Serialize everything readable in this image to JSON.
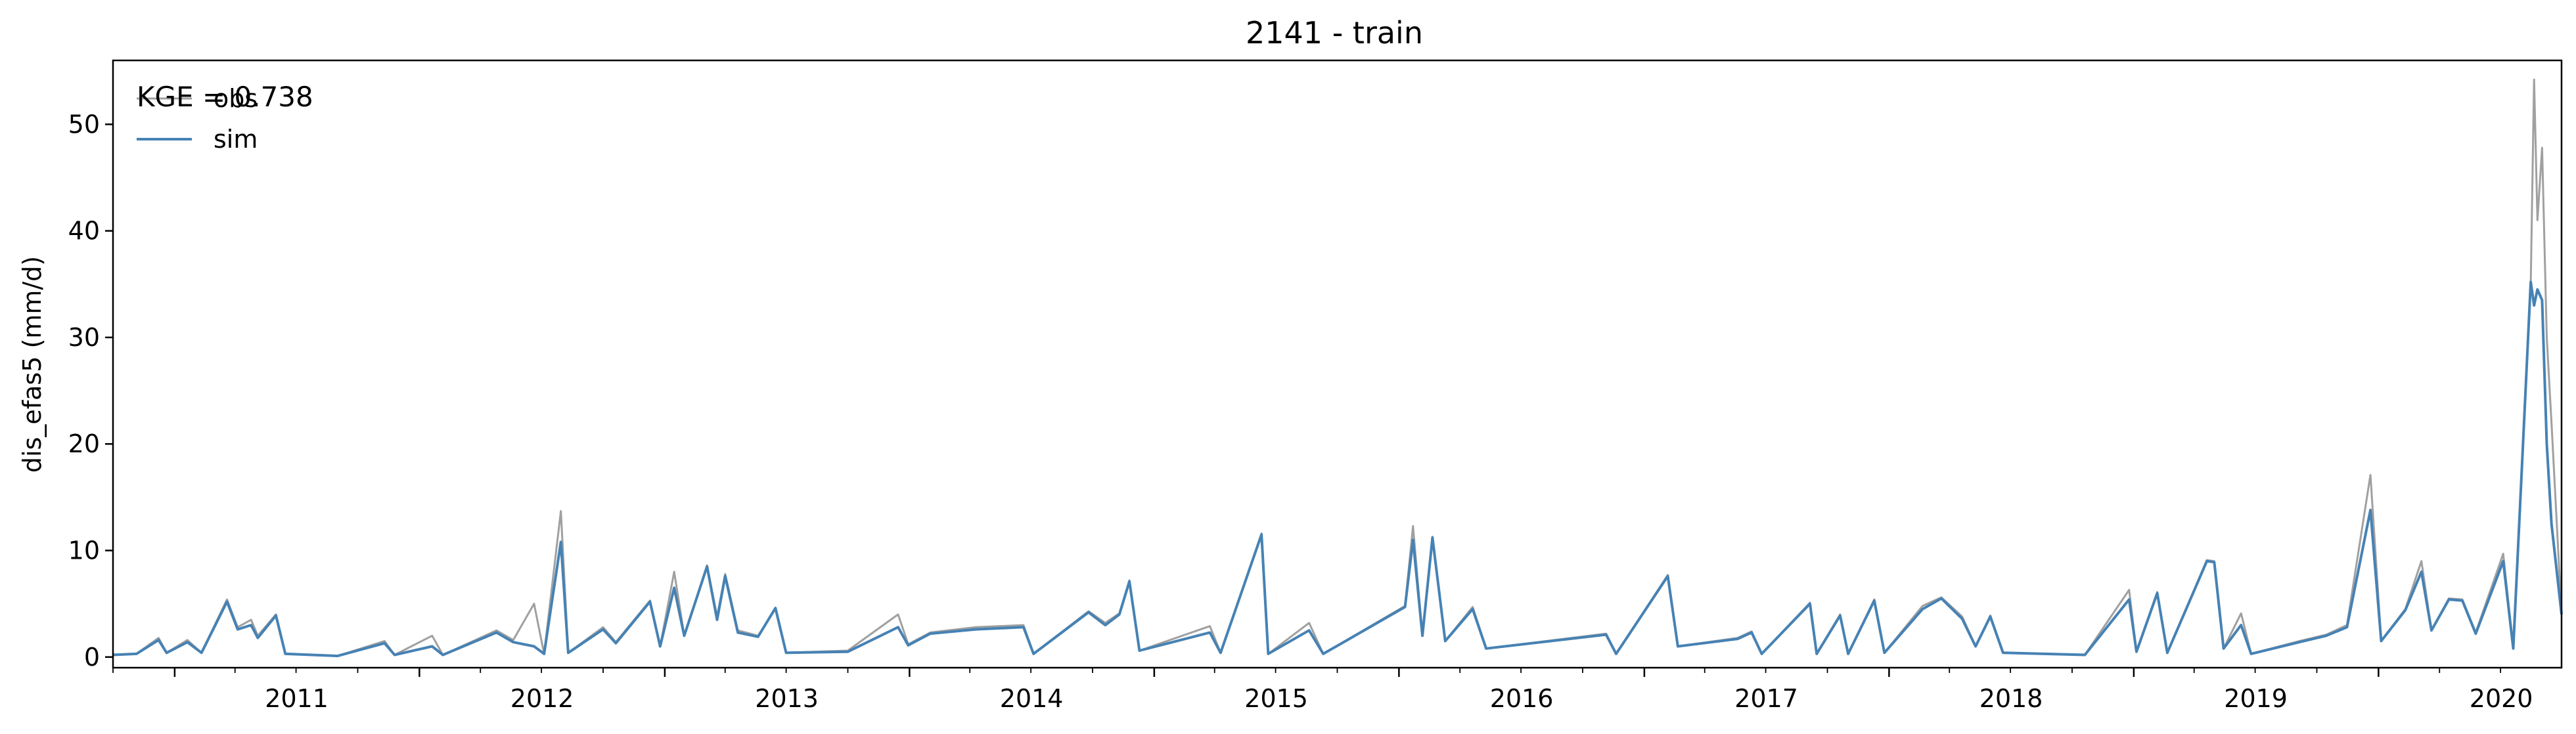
{
  "chart_data": {
    "type": "line",
    "title": "2141 - train",
    "xlabel": "",
    "ylabel": "dis_efas5 (mm/d)",
    "annotation": "KGE = 0.738",
    "legend_position": "top-left",
    "grid": false,
    "xlim": [
      "2010-10-01",
      "2020-09-30"
    ],
    "ylim": [
      -1,
      56
    ],
    "x_ticks": [
      "2011",
      "2012",
      "2013",
      "2014",
      "2015",
      "2016",
      "2017",
      "2018",
      "2019",
      "2020"
    ],
    "y_ticks": [
      0,
      10,
      20,
      30,
      40,
      50
    ],
    "series": [
      {
        "name": "obs",
        "color": "#a0a0a0",
        "points": [
          [
            "2010-10-01",
            0.2
          ],
          [
            "2010-11-05",
            0.3
          ],
          [
            "2010-12-08",
            1.8
          ],
          [
            "2010-12-20",
            0.4
          ],
          [
            "2011-01-20",
            1.6
          ],
          [
            "2011-02-10",
            0.4
          ],
          [
            "2011-03-20",
            5.4
          ],
          [
            "2011-04-05",
            2.8
          ],
          [
            "2011-04-25",
            3.5
          ],
          [
            "2011-05-05",
            2.0
          ],
          [
            "2011-06-01",
            4.0
          ],
          [
            "2011-06-15",
            0.3
          ],
          [
            "2011-09-01",
            0.1
          ],
          [
            "2011-11-10",
            1.5
          ],
          [
            "2011-11-25",
            0.2
          ],
          [
            "2012-01-20",
            2.0
          ],
          [
            "2012-02-05",
            0.2
          ],
          [
            "2012-04-25",
            2.5
          ],
          [
            "2012-05-20",
            1.6
          ],
          [
            "2012-06-20",
            5.0
          ],
          [
            "2012-07-05",
            0.3
          ],
          [
            "2012-07-30",
            13.7
          ],
          [
            "2012-08-10",
            0.4
          ],
          [
            "2012-10-01",
            2.8
          ],
          [
            "2012-10-20",
            1.4
          ],
          [
            "2012-12-10",
            5.3
          ],
          [
            "2012-12-25",
            1.0
          ],
          [
            "2013-01-15",
            8.0
          ],
          [
            "2013-01-30",
            2.0
          ],
          [
            "2013-03-05",
            8.6
          ],
          [
            "2013-03-20",
            3.8
          ],
          [
            "2013-04-01",
            7.8
          ],
          [
            "2013-04-20",
            2.5
          ],
          [
            "2013-05-20",
            2.0
          ],
          [
            "2013-06-15",
            4.5
          ],
          [
            "2013-07-01",
            0.4
          ],
          [
            "2013-10-01",
            0.6
          ],
          [
            "2013-12-15",
            4.0
          ],
          [
            "2013-12-30",
            1.2
          ],
          [
            "2014-02-01",
            2.3
          ],
          [
            "2014-04-10",
            2.8
          ],
          [
            "2014-06-20",
            3.0
          ],
          [
            "2014-07-05",
            0.3
          ],
          [
            "2014-09-25",
            4.3
          ],
          [
            "2014-10-20",
            3.2
          ],
          [
            "2014-11-10",
            4.1
          ],
          [
            "2014-11-25",
            7.2
          ],
          [
            "2014-12-10",
            0.6
          ],
          [
            "2015-03-25",
            2.9
          ],
          [
            "2015-04-10",
            0.4
          ],
          [
            "2015-06-10",
            11.6
          ],
          [
            "2015-06-20",
            0.3
          ],
          [
            "2015-08-20",
            3.2
          ],
          [
            "2015-09-10",
            0.3
          ],
          [
            "2016-01-10",
            4.8
          ],
          [
            "2016-01-22",
            12.3
          ],
          [
            "2016-02-05",
            2.0
          ],
          [
            "2016-02-20",
            11.3
          ],
          [
            "2016-03-10",
            1.5
          ],
          [
            "2016-04-20",
            4.7
          ],
          [
            "2016-05-10",
            0.8
          ],
          [
            "2016-11-05",
            2.2
          ],
          [
            "2016-11-20",
            0.3
          ],
          [
            "2017-02-05",
            7.7
          ],
          [
            "2017-02-20",
            1.0
          ],
          [
            "2017-05-20",
            1.8
          ],
          [
            "2017-06-10",
            2.4
          ],
          [
            "2017-06-25",
            0.3
          ],
          [
            "2017-09-05",
            5.1
          ],
          [
            "2017-09-15",
            0.3
          ],
          [
            "2017-10-20",
            4.0
          ],
          [
            "2017-11-01",
            0.3
          ],
          [
            "2017-12-10",
            5.4
          ],
          [
            "2017-12-25",
            0.4
          ],
          [
            "2018-02-20",
            4.8
          ],
          [
            "2018-03-20",
            5.6
          ],
          [
            "2018-04-20",
            3.8
          ],
          [
            "2018-05-10",
            1.0
          ],
          [
            "2018-06-01",
            3.9
          ],
          [
            "2018-06-20",
            0.4
          ],
          [
            "2018-10-20",
            0.2
          ],
          [
            "2018-12-25",
            6.3
          ],
          [
            "2019-01-05",
            0.5
          ],
          [
            "2019-02-05",
            6.1
          ],
          [
            "2019-02-20",
            0.4
          ],
          [
            "2019-04-20",
            9.1
          ],
          [
            "2019-05-01",
            9.0
          ],
          [
            "2019-05-15",
            0.8
          ],
          [
            "2019-06-10",
            4.1
          ],
          [
            "2019-06-25",
            0.3
          ],
          [
            "2019-09-05",
            1.5
          ],
          [
            "2019-10-15",
            2.1
          ],
          [
            "2019-11-15",
            3.0
          ],
          [
            "2019-12-20",
            17.1
          ],
          [
            "2020-01-05",
            1.5
          ],
          [
            "2020-02-10",
            4.5
          ],
          [
            "2020-03-05",
            9.0
          ],
          [
            "2020-03-20",
            2.5
          ],
          [
            "2020-04-15",
            5.5
          ],
          [
            "2020-05-05",
            5.4
          ],
          [
            "2020-05-25",
            2.3
          ],
          [
            "2020-07-05",
            9.7
          ],
          [
            "2020-07-20",
            0.8
          ],
          [
            "2020-08-15",
            35.0
          ],
          [
            "2020-08-20",
            54.2
          ],
          [
            "2020-08-25",
            41.0
          ],
          [
            "2020-09-01",
            47.8
          ],
          [
            "2020-09-08",
            30.0
          ],
          [
            "2020-09-15",
            22.0
          ],
          [
            "2020-09-30",
            4.0
          ]
        ]
      },
      {
        "name": "sim",
        "color": "#4682b4",
        "points": [
          [
            "2010-10-01",
            0.2
          ],
          [
            "2010-11-05",
            0.3
          ],
          [
            "2010-12-08",
            1.6
          ],
          [
            "2010-12-20",
            0.4
          ],
          [
            "2011-01-20",
            1.4
          ],
          [
            "2011-02-10",
            0.4
          ],
          [
            "2011-03-20",
            5.2
          ],
          [
            "2011-04-05",
            2.6
          ],
          [
            "2011-04-25",
            3.0
          ],
          [
            "2011-05-05",
            1.8
          ],
          [
            "2011-06-01",
            3.9
          ],
          [
            "2011-06-15",
            0.3
          ],
          [
            "2011-09-01",
            0.1
          ],
          [
            "2011-11-10",
            1.3
          ],
          [
            "2011-11-25",
            0.2
          ],
          [
            "2012-01-20",
            1.0
          ],
          [
            "2012-02-05",
            0.2
          ],
          [
            "2012-04-25",
            2.3
          ],
          [
            "2012-05-20",
            1.4
          ],
          [
            "2012-06-20",
            1.0
          ],
          [
            "2012-07-05",
            0.3
          ],
          [
            "2012-07-30",
            10.8
          ],
          [
            "2012-08-10",
            0.4
          ],
          [
            "2012-10-01",
            2.6
          ],
          [
            "2012-10-20",
            1.3
          ],
          [
            "2012-12-10",
            5.2
          ],
          [
            "2012-12-25",
            1.0
          ],
          [
            "2013-01-15",
            6.5
          ],
          [
            "2013-01-30",
            2.0
          ],
          [
            "2013-03-05",
            8.5
          ],
          [
            "2013-03-20",
            3.5
          ],
          [
            "2013-04-01",
            7.6
          ],
          [
            "2013-04-20",
            2.3
          ],
          [
            "2013-05-20",
            1.9
          ],
          [
            "2013-06-15",
            4.6
          ],
          [
            "2013-07-01",
            0.4
          ],
          [
            "2013-10-01",
            0.5
          ],
          [
            "2013-12-15",
            2.8
          ],
          [
            "2013-12-30",
            1.1
          ],
          [
            "2014-02-01",
            2.2
          ],
          [
            "2014-04-10",
            2.6
          ],
          [
            "2014-06-20",
            2.8
          ],
          [
            "2014-07-05",
            0.3
          ],
          [
            "2014-09-25",
            4.2
          ],
          [
            "2014-10-20",
            3.0
          ],
          [
            "2014-11-10",
            4.0
          ],
          [
            "2014-11-25",
            7.1
          ],
          [
            "2014-12-10",
            0.6
          ],
          [
            "2015-03-25",
            2.3
          ],
          [
            "2015-04-10",
            0.4
          ],
          [
            "2015-06-10",
            11.5
          ],
          [
            "2015-06-20",
            0.3
          ],
          [
            "2015-08-20",
            2.5
          ],
          [
            "2015-09-10",
            0.3
          ],
          [
            "2016-01-10",
            4.7
          ],
          [
            "2016-01-22",
            11.0
          ],
          [
            "2016-02-05",
            2.0
          ],
          [
            "2016-02-20",
            11.2
          ],
          [
            "2016-03-10",
            1.5
          ],
          [
            "2016-04-20",
            4.5
          ],
          [
            "2016-05-10",
            0.8
          ],
          [
            "2016-11-05",
            2.1
          ],
          [
            "2016-11-20",
            0.3
          ],
          [
            "2017-02-05",
            7.6
          ],
          [
            "2017-02-20",
            1.0
          ],
          [
            "2017-05-20",
            1.7
          ],
          [
            "2017-06-10",
            2.3
          ],
          [
            "2017-06-25",
            0.3
          ],
          [
            "2017-09-05",
            5.0
          ],
          [
            "2017-09-15",
            0.3
          ],
          [
            "2017-10-20",
            3.9
          ],
          [
            "2017-11-01",
            0.3
          ],
          [
            "2017-12-10",
            5.3
          ],
          [
            "2017-12-25",
            0.4
          ],
          [
            "2018-02-20",
            4.5
          ],
          [
            "2018-03-20",
            5.5
          ],
          [
            "2018-04-20",
            3.6
          ],
          [
            "2018-05-10",
            1.0
          ],
          [
            "2018-06-01",
            3.8
          ],
          [
            "2018-06-20",
            0.4
          ],
          [
            "2018-10-20",
            0.2
          ],
          [
            "2018-12-25",
            5.4
          ],
          [
            "2019-01-05",
            0.5
          ],
          [
            "2019-02-05",
            6.0
          ],
          [
            "2019-02-20",
            0.4
          ],
          [
            "2019-04-20",
            9.0
          ],
          [
            "2019-05-01",
            8.9
          ],
          [
            "2019-05-15",
            0.8
          ],
          [
            "2019-06-10",
            3.0
          ],
          [
            "2019-06-25",
            0.3
          ],
          [
            "2019-09-05",
            1.4
          ],
          [
            "2019-10-15",
            2.0
          ],
          [
            "2019-11-15",
            2.8
          ],
          [
            "2019-12-20",
            13.8
          ],
          [
            "2020-01-05",
            1.5
          ],
          [
            "2020-02-10",
            4.4
          ],
          [
            "2020-03-05",
            8.0
          ],
          [
            "2020-03-20",
            2.5
          ],
          [
            "2020-04-15",
            5.4
          ],
          [
            "2020-05-05",
            5.3
          ],
          [
            "2020-05-25",
            2.2
          ],
          [
            "2020-07-05",
            9.0
          ],
          [
            "2020-07-20",
            0.8
          ],
          [
            "2020-08-15",
            35.2
          ],
          [
            "2020-08-20",
            33.0
          ],
          [
            "2020-08-25",
            34.5
          ],
          [
            "2020-09-01",
            33.5
          ],
          [
            "2020-09-08",
            20.0
          ],
          [
            "2020-09-15",
            12.5
          ],
          [
            "2020-09-30",
            4.0
          ]
        ]
      }
    ]
  }
}
